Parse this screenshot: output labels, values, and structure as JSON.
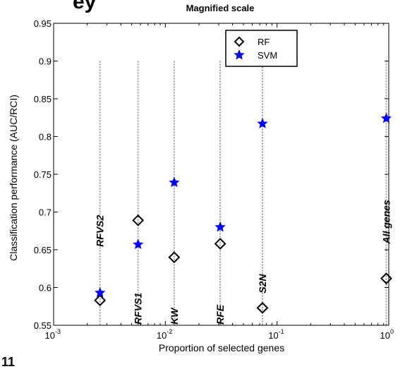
{
  "fragments": {
    "top_left": "ey",
    "bottom_left": "11"
  },
  "chart_data": {
    "type": "scatter",
    "title": "Magnified scale",
    "xlabel": "Proportion of selected genes",
    "ylabel": "Classification performance (AUC/RCI)",
    "xscale": "log",
    "xlim": [
      0.001,
      1
    ],
    "ylim": [
      0.55,
      0.95
    ],
    "xticks": [
      {
        "value": 0.001,
        "base": "10",
        "exp": "-3"
      },
      {
        "value": 0.01,
        "base": "10",
        "exp": "-2"
      },
      {
        "value": 0.1,
        "base": "10",
        "exp": "-1"
      },
      {
        "value": 1,
        "base": "10",
        "exp": "0"
      }
    ],
    "yticks": [
      {
        "value": 0.55,
        "label": "0.55"
      },
      {
        "value": 0.6,
        "label": "0.6"
      },
      {
        "value": 0.65,
        "label": "0.65"
      },
      {
        "value": 0.7,
        "label": "0.7"
      },
      {
        "value": 0.75,
        "label": "0.75"
      },
      {
        "value": 0.8,
        "label": "0.8"
      },
      {
        "value": 0.85,
        "label": "0.85"
      },
      {
        "value": 0.9,
        "label": "0.9"
      },
      {
        "value": 0.95,
        "label": "0.95"
      }
    ],
    "legend": {
      "placement": "top-right"
    },
    "colors": {
      "SVM": "#0000ff",
      "RF": "#000000",
      "guide": "#999999"
    },
    "series": [
      {
        "name": "RF",
        "marker": "diamond",
        "x": [
          0.0026,
          0.0057,
          0.012,
          0.031,
          0.074,
          0.95
        ],
        "y": [
          0.583,
          0.689,
          0.64,
          0.658,
          0.573,
          0.612
        ]
      },
      {
        "name": "SVM",
        "marker": "star",
        "x": [
          0.0026,
          0.0057,
          0.012,
          0.031,
          0.074,
          0.95
        ],
        "y": [
          0.593,
          0.657,
          0.739,
          0.68,
          0.817,
          0.824
        ]
      }
    ],
    "methods": [
      {
        "label": "RFVS2",
        "x": 0.0026,
        "label_y": 0.675,
        "anchor": "middle"
      },
      {
        "label": "RFVS1",
        "x": 0.0057,
        "label_y": 0.551,
        "anchor": "start"
      },
      {
        "label": "KW",
        "x": 0.012,
        "label_y": 0.551,
        "anchor": "start"
      },
      {
        "label": "RFE",
        "x": 0.031,
        "label_y": 0.551,
        "anchor": "start"
      },
      {
        "label": "S2N",
        "x": 0.074,
        "label_y": 0.605,
        "anchor": "middle"
      },
      {
        "label": "All genes",
        "x": 0.95,
        "label_y": 0.687,
        "anchor": "middle"
      }
    ]
  }
}
